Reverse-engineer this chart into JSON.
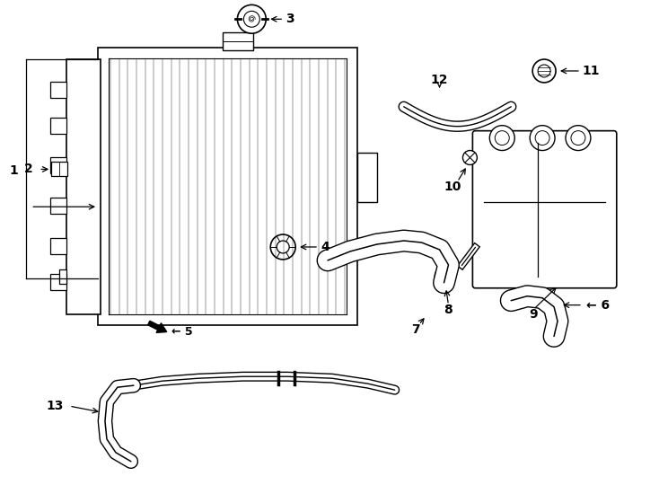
{
  "bg": "#ffffff",
  "lc": "#000000",
  "fig_w": 7.34,
  "fig_h": 5.4,
  "dpi": 100
}
